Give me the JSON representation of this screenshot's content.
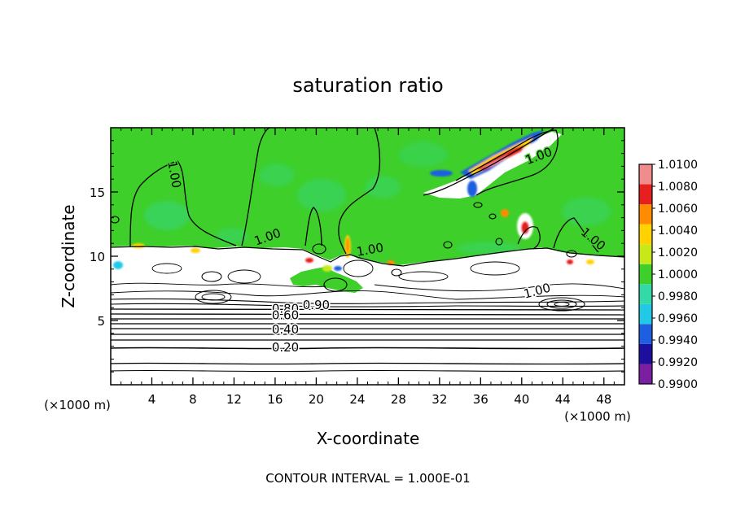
{
  "chart_data": {
    "type": "heatmap",
    "title": "saturation ratio",
    "xlabel": "X-coordinate",
    "ylabel": "Z-coordinate",
    "x_unit": "(×1000 m)",
    "z_unit": "(×1000 m)",
    "xlim": [
      0,
      50
    ],
    "ylim": [
      0,
      20
    ],
    "x_ticks": [
      4,
      8,
      12,
      16,
      20,
      24,
      28,
      32,
      36,
      40,
      44,
      48
    ],
    "y_ticks": [
      5,
      10,
      15
    ],
    "footer": "CONTOUR INTERVAL = 1.000E-01",
    "colorbar": {
      "levels": [
        "0.9900",
        "0.9920",
        "0.9940",
        "0.9960",
        "0.9980",
        "1.0000",
        "1.0020",
        "1.0040",
        "1.0060",
        "1.0080",
        "1.0100"
      ],
      "colors": [
        "#7a1fa2",
        "#1c0f9e",
        "#1d5fe0",
        "#22c9e6",
        "#33d9a6",
        "#3ecf2a",
        "#c8e81a",
        "#ffd200",
        "#ff8c00",
        "#e61f1f",
        "#f08c8c"
      ]
    },
    "background_color": "#3ecf2a",
    "contour_labels": [
      {
        "text": "1.00",
        "x": 5.8,
        "z": 16.3,
        "angle": 80
      },
      {
        "text": "1.00",
        "x": 15.4,
        "z": 11.2,
        "angle": -20
      },
      {
        "text": "1.00",
        "x": 25.3,
        "z": 10.2,
        "angle": -10
      },
      {
        "text": "1.00",
        "x": 41.8,
        "z": 17.5,
        "angle": -20
      },
      {
        "text": "1.00",
        "x": 46.7,
        "z": 11.1,
        "angle": 40
      },
      {
        "text": "1.00",
        "x": 41.6,
        "z": 7.0,
        "angle": -15
      },
      {
        "text": "0.90",
        "x": 20.0,
        "z": 5.9,
        "angle": 0
      },
      {
        "text": "0.80",
        "x": 17.0,
        "z": 5.6,
        "angle": 0
      },
      {
        "text": "0.60",
        "x": 17.0,
        "z": 5.1,
        "angle": 0
      },
      {
        "text": "0.40",
        "x": 17.0,
        "z": 4.0,
        "angle": 0
      },
      {
        "text": "0.20",
        "x": 17.0,
        "z": 2.6,
        "angle": 0
      }
    ]
  }
}
